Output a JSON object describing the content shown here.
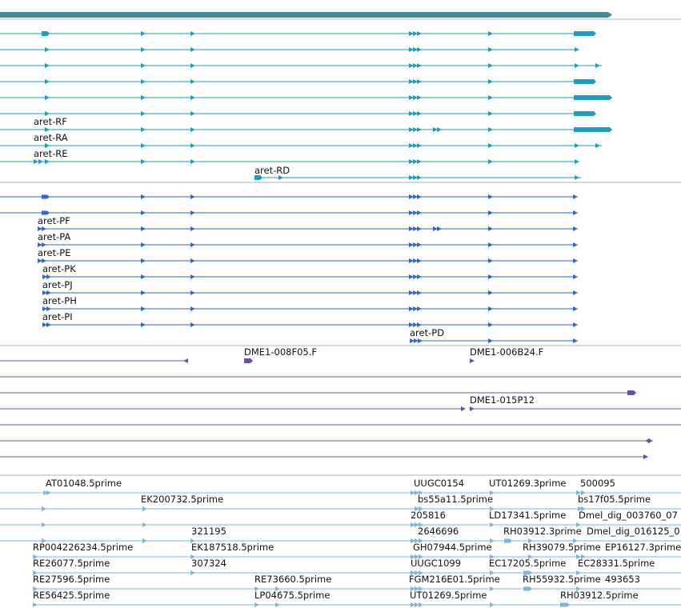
{
  "colors": {
    "gene": "#3a9098",
    "rna": "#1a9ebe",
    "protein": "#3366cc",
    "est_purple": "#6a50a8",
    "cdna": "#7bb6de",
    "separator": "#b0b0b0"
  },
  "tracks": {
    "gene_span": {
      "label": ""
    },
    "transcripts": {
      "labels": [
        "aret-RF",
        "aret-RA",
        "aret-RE",
        "aret-RD"
      ]
    },
    "proteins": {
      "labels": [
        "aret-PF",
        "aret-PA",
        "aret-PE",
        "aret-PK",
        "aret-PJ",
        "aret-PH",
        "aret-PI",
        "aret-PD"
      ]
    },
    "bac_ends": {
      "labels": [
        "DME1-008F05.F",
        "DME1-006B24.F",
        "DME1-015P12"
      ]
    },
    "cdna": {
      "labels": [
        "AT01048.5prime",
        "UUGC0154",
        "UT01269.3prime",
        "500095",
        "EK200732.5prime",
        "bs55a11.5prime",
        "bs17f05.5prime",
        "205816",
        "LD17341.5prime",
        "Dmel_dig_003760_07",
        "321195",
        "2646696",
        "RH03912.3prime",
        "Dmel_dig_016125_0",
        "RP004226234.5prime",
        "EK187518.5prime",
        "GH07944.5prime",
        "RH39079.5prime",
        "EP16127.3prime",
        "RE26077.5prime",
        "307324",
        "UUGC1099",
        "EC17205.5prime",
        "EC28331.5prime",
        "RE27596.5prime",
        "RE73660.5prime",
        "FGM216E01.5prime",
        "RH55932.5prime",
        "493653",
        "RE56425.5prime",
        "LP04675.5prime",
        "UT01269.5prime",
        "RH03912.5prime"
      ]
    }
  }
}
